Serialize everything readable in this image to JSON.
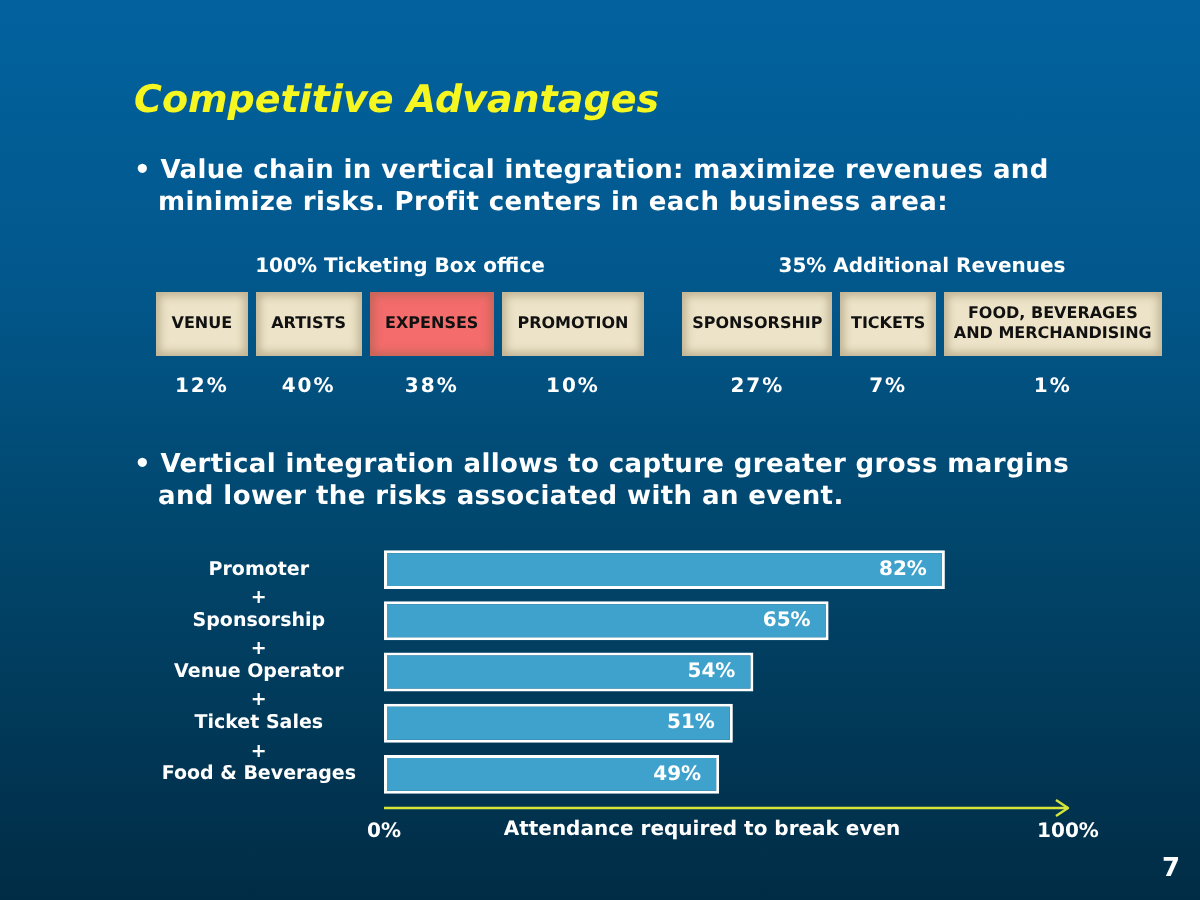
{
  "chart_data": [
    {
      "type": "other",
      "title": "Competitive Advantages",
      "subtitle": "• Value chain in vertical integration: maximize revenues and minimize risks. Profit centers in each business area:"
    },
    {
      "type": "other",
      "title": "100% Ticketing Box office",
      "categories": [
        "VENUE",
        "ARTISTS",
        "EXPENSES",
        "PROMOTION"
      ],
      "values": [
        12,
        40,
        38,
        10
      ],
      "value_labels": [
        "12%",
        "40%",
        "38%",
        "10%"
      ],
      "colors": [
        "#ece3c8",
        "#ece3c8",
        "#f46c6c",
        "#ece3c8"
      ]
    },
    {
      "type": "other",
      "title": "35% Additional Revenues",
      "categories": [
        "SPONSORSHIP",
        "TICKETS",
        "FOOD, BEVERAGES\nAND MERCHANDISING"
      ],
      "values": [
        27,
        7,
        1
      ],
      "value_labels": [
        "27%",
        "7%",
        "1%"
      ],
      "colors": [
        "#ece3c8",
        "#ece3c8",
        "#ece3c8"
      ]
    },
    {
      "type": "bar",
      "orientation": "horizontal",
      "subtitle": "• Vertical integration allows to capture greater gross margins and lower the risks associated with an event.",
      "categories": [
        "Promoter",
        "+\nSponsorship",
        "+\nVenue Operator",
        "+\nTicket Sales",
        "+\nFood & Beverages"
      ],
      "values": [
        82,
        65,
        54,
        51,
        49
      ],
      "value_labels": [
        "82%",
        "65%",
        "54%",
        "51%",
        "49%"
      ],
      "color": "#3ea2cc",
      "xlabel": "Attendance required to break even",
      "xlim": [
        0,
        100
      ],
      "xticks": [
        {
          "value": 0,
          "label": "0%"
        },
        {
          "value": 100,
          "label": "100%"
        }
      ],
      "annotations": [
        "7"
      ]
    }
  ]
}
